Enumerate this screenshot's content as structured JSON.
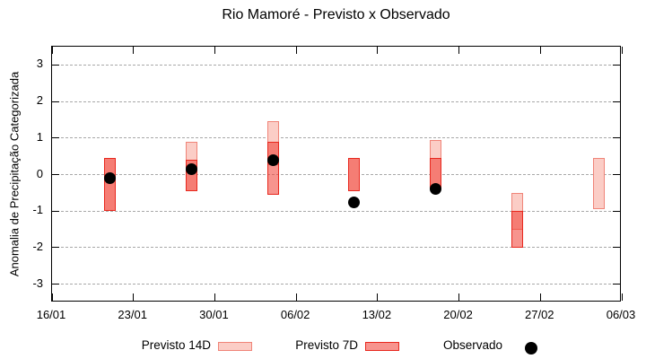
{
  "title": "Rio Mamoré - Previsto x Observado",
  "y_axis": {
    "label": "Anomalia de Precipitação Categorizada",
    "ticks": [
      -3,
      -2,
      -1,
      0,
      1,
      2,
      3
    ],
    "range": [
      -3.5,
      3.5
    ]
  },
  "x_axis": {
    "tick_labels": [
      "16/01",
      "23/01",
      "30/01",
      "06/02",
      "13/02",
      "20/02",
      "27/02",
      "06/03"
    ],
    "days_span": 49
  },
  "legend": [
    {
      "label": "Previsto 14D",
      "type": "box",
      "series": "previsto_14d"
    },
    {
      "label": "Previsto 7D",
      "type": "box",
      "series": "previsto_7d"
    },
    {
      "label": "Observado",
      "type": "dot",
      "series": "observado"
    }
  ],
  "chart_data": {
    "type": "bar",
    "subtype": "range-bars-with-points",
    "grid": true,
    "legend_position": "bottom",
    "colors": {
      "previsto_14d_fill": "#fbcdc6",
      "previsto_14d_border": "#f08478",
      "previsto_7d_fill": "rgba(240,60,50,0.55)",
      "previsto_7d_border": "#e8281e",
      "observado": "#000000",
      "gridline": "#a8a8a8"
    },
    "series": [
      {
        "name": "Previsto 14D",
        "kind": "range",
        "ranges": [
          {
            "x": "21/01",
            "lo": -1.0,
            "hi": 0.45
          },
          {
            "x": "28/01",
            "lo": -0.45,
            "hi": 0.9
          },
          {
            "x": "04/02",
            "lo": 0.25,
            "hi": 1.45
          },
          {
            "x": "11/02",
            "lo": -0.45,
            "hi": 0.45
          },
          {
            "x": "18/02",
            "lo": -0.4,
            "hi": 0.95
          },
          {
            "x": "25/02",
            "lo": -1.5,
            "hi": -0.5
          },
          {
            "x": "04/03",
            "lo": -0.95,
            "hi": 0.45
          }
        ]
      },
      {
        "name": "Previsto 7D",
        "kind": "range",
        "ranges": [
          {
            "x": "21/01",
            "lo": -1.0,
            "hi": 0.45
          },
          {
            "x": "28/01",
            "lo": -0.45,
            "hi": 0.4
          },
          {
            "x": "04/02",
            "lo": -0.55,
            "hi": 0.9
          },
          {
            "x": "11/02",
            "lo": -0.45,
            "hi": 0.45
          },
          {
            "x": "18/02",
            "lo": -0.4,
            "hi": 0.45
          },
          {
            "x": "25/02",
            "lo": -2.0,
            "hi": -1.0
          }
        ]
      },
      {
        "name": "Observado",
        "kind": "points",
        "points": [
          {
            "x": "21/01",
            "y": -0.1
          },
          {
            "x": "28/01",
            "y": 0.15
          },
          {
            "x": "04/02",
            "y": 0.4
          },
          {
            "x": "11/02",
            "y": -0.75
          },
          {
            "x": "18/02",
            "y": -0.4
          }
        ]
      }
    ]
  }
}
